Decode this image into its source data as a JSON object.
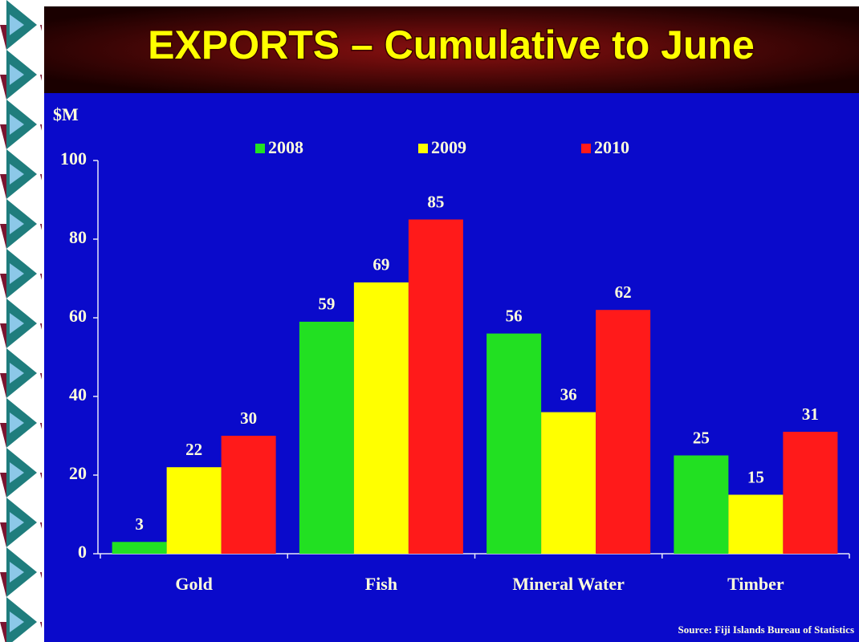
{
  "chart_data": {
    "type": "bar",
    "title": "EXPORTS – Cumulative to June",
    "y_label": "$M",
    "source": "Source: Fiji Islands Bureau of Statistics",
    "categories": [
      "Gold",
      "Fish",
      "Mineral Water",
      "Timber"
    ],
    "series": [
      {
        "name": "2008",
        "color": "#22e022",
        "values": [
          3,
          59,
          56,
          25
        ]
      },
      {
        "name": "2009",
        "color": "#ffff00",
        "values": [
          22,
          69,
          36,
          15
        ]
      },
      {
        "name": "2010",
        "color": "#ff1a1a",
        "values": [
          30,
          85,
          62,
          31
        ]
      }
    ],
    "ylim": [
      0,
      100
    ],
    "yticks": [
      0,
      20,
      40,
      60,
      80,
      100
    ],
    "grid": false,
    "legend": "top"
  }
}
